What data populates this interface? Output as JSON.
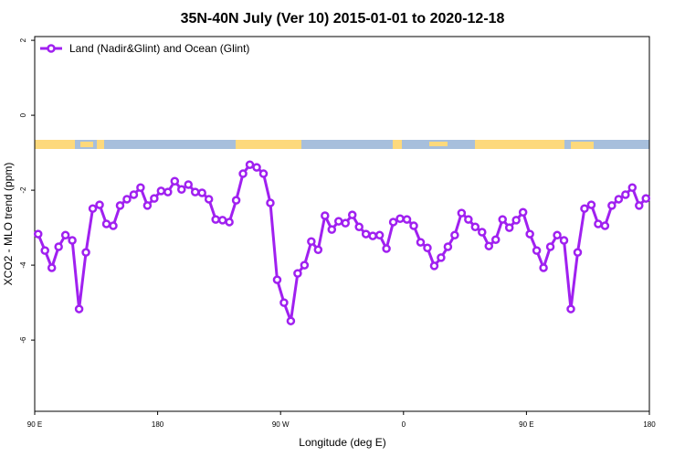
{
  "chart_data": {
    "type": "line",
    "title": "35N-40N July (Ver 10)   2015-01-01 to 2020-12-18",
    "xlabel": "Longitude (deg E)",
    "ylabel": "XCO2 - MLO trend (ppm)",
    "x": [
      92.5,
      97.5,
      102.5,
      107.5,
      112.5,
      117.5,
      122.5,
      127.5,
      132.5,
      137.5,
      142.5,
      147.5,
      152.5,
      157.5,
      162.5,
      167.5,
      172.5,
      177.5,
      182.5,
      187.5,
      192.5,
      197.5,
      202.5,
      207.5,
      212.5,
      217.5,
      222.5,
      227.5,
      232.5,
      237.5,
      242.5,
      247.5,
      252.5,
      257.5,
      262.5,
      267.5,
      272.5,
      277.5,
      282.5,
      287.5,
      292.5,
      297.5,
      302.5,
      307.5,
      312.5,
      317.5,
      322.5,
      327.5,
      332.5,
      337.5,
      342.5,
      347.5,
      352.5,
      357.5,
      362.5,
      367.5,
      372.5,
      377.5,
      382.5,
      387.5,
      392.5,
      397.5,
      402.5,
      407.5,
      412.5,
      417.5,
      422.5,
      427.5,
      432.5,
      437.5,
      442.5,
      447.5,
      452.5,
      457.5,
      462.5,
      467.5,
      472.5,
      477.5,
      482.5,
      487.5,
      492.5,
      497.5,
      502.5,
      507.5,
      512.5,
      517.5,
      522.5,
      527.5,
      532.5,
      537.5
    ],
    "series": [
      {
        "name": "Land (Nadir&Glint) and Ocean (Glint)",
        "color": "#a020f0",
        "values": [
          -3.17,
          -3.61,
          -4.07,
          -3.51,
          -3.2,
          -3.34,
          -5.17,
          -3.66,
          -2.49,
          -2.39,
          -2.9,
          -2.95,
          -2.41,
          -2.24,
          -2.12,
          -1.93,
          -2.41,
          -2.22,
          -2.02,
          -2.05,
          -1.76,
          -1.98,
          -1.85,
          -2.05,
          -2.07,
          -2.24,
          -2.78,
          -2.8,
          -2.85,
          -2.27,
          -1.56,
          -1.32,
          -1.39,
          -1.56,
          -2.34,
          -4.39,
          -5.0,
          -5.49,
          -4.22,
          -4.0,
          -3.37,
          -3.59,
          -2.68,
          -3.05,
          -2.83,
          -2.88,
          -2.66,
          -2.98,
          -3.17,
          -3.22,
          -3.2,
          -3.56,
          -2.85,
          -2.76,
          -2.78,
          -2.95,
          -3.39,
          -3.54,
          -4.02,
          -3.8,
          -3.51,
          -3.2,
          -2.61,
          -2.78,
          -2.98,
          -3.12,
          -3.49,
          -3.32,
          -2.78,
          -3.0,
          -2.8,
          -2.59,
          -3.17,
          -3.61,
          -4.07,
          -3.51,
          -3.2,
          -3.34,
          -5.17,
          -3.66,
          -2.49,
          -2.39,
          -2.9,
          -2.95,
          -2.41,
          -2.24,
          -2.12,
          -1.93,
          -2.41,
          -2.22
        ]
      }
    ],
    "xlim": [
      90,
      540
    ],
    "xticks": [
      {
        "value": 90,
        "label": "90 E"
      },
      180,
      {
        "value": 270,
        "label": "90 W"
      },
      {
        "value": 360,
        "label": "0"
      },
      {
        "value": 450,
        "label": "90 E"
      },
      {
        "value": 540,
        "label": "180"
      }
    ],
    "ylim": [
      -7.9,
      2.1
    ],
    "yticks": [
      2,
      0,
      -2,
      -4,
      -6
    ],
    "legend": "top-left"
  }
}
